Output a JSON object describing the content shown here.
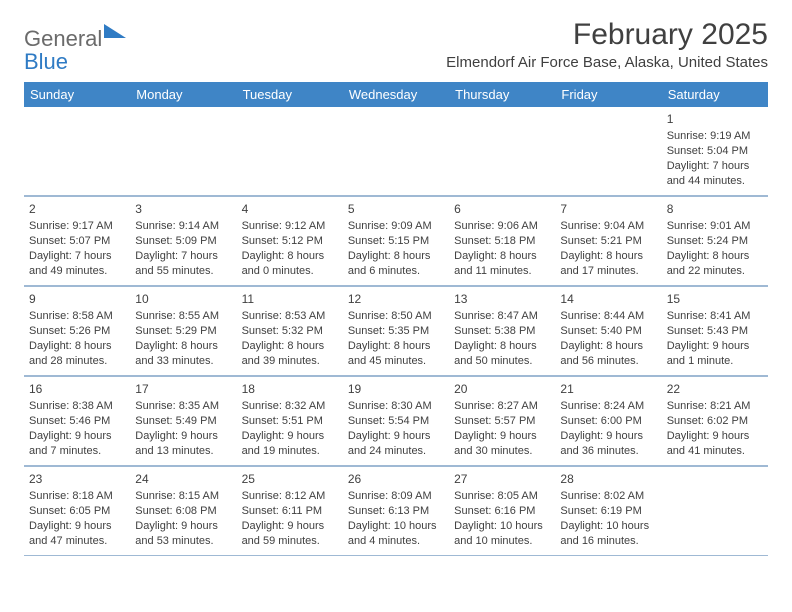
{
  "logo": {
    "text1": "General",
    "text2": "Blue"
  },
  "title": "February 2025",
  "location": "Elmendorf Air Force Base, Alaska, United States",
  "colors": {
    "header_bg": "#3f85c6",
    "header_text": "#ffffff",
    "border": "#9fb9d4",
    "body_text": "#404040",
    "logo_gray": "#6b6b6b",
    "logo_blue": "#2f7bc4",
    "background": "#ffffff"
  },
  "typography": {
    "title_fontsize": 30,
    "location_fontsize": 15,
    "header_fontsize": 13,
    "cell_fontsize": 11,
    "daynum_fontsize": 12
  },
  "day_names": [
    "Sunday",
    "Monday",
    "Tuesday",
    "Wednesday",
    "Thursday",
    "Friday",
    "Saturday"
  ],
  "weeks": [
    [
      null,
      null,
      null,
      null,
      null,
      null,
      {
        "n": "1",
        "sunrise": "Sunrise: 9:19 AM",
        "sunset": "Sunset: 5:04 PM",
        "day1": "Daylight: 7 hours",
        "day2": "and 44 minutes."
      }
    ],
    [
      {
        "n": "2",
        "sunrise": "Sunrise: 9:17 AM",
        "sunset": "Sunset: 5:07 PM",
        "day1": "Daylight: 7 hours",
        "day2": "and 49 minutes."
      },
      {
        "n": "3",
        "sunrise": "Sunrise: 9:14 AM",
        "sunset": "Sunset: 5:09 PM",
        "day1": "Daylight: 7 hours",
        "day2": "and 55 minutes."
      },
      {
        "n": "4",
        "sunrise": "Sunrise: 9:12 AM",
        "sunset": "Sunset: 5:12 PM",
        "day1": "Daylight: 8 hours",
        "day2": "and 0 minutes."
      },
      {
        "n": "5",
        "sunrise": "Sunrise: 9:09 AM",
        "sunset": "Sunset: 5:15 PM",
        "day1": "Daylight: 8 hours",
        "day2": "and 6 minutes."
      },
      {
        "n": "6",
        "sunrise": "Sunrise: 9:06 AM",
        "sunset": "Sunset: 5:18 PM",
        "day1": "Daylight: 8 hours",
        "day2": "and 11 minutes."
      },
      {
        "n": "7",
        "sunrise": "Sunrise: 9:04 AM",
        "sunset": "Sunset: 5:21 PM",
        "day1": "Daylight: 8 hours",
        "day2": "and 17 minutes."
      },
      {
        "n": "8",
        "sunrise": "Sunrise: 9:01 AM",
        "sunset": "Sunset: 5:24 PM",
        "day1": "Daylight: 8 hours",
        "day2": "and 22 minutes."
      }
    ],
    [
      {
        "n": "9",
        "sunrise": "Sunrise: 8:58 AM",
        "sunset": "Sunset: 5:26 PM",
        "day1": "Daylight: 8 hours",
        "day2": "and 28 minutes."
      },
      {
        "n": "10",
        "sunrise": "Sunrise: 8:55 AM",
        "sunset": "Sunset: 5:29 PM",
        "day1": "Daylight: 8 hours",
        "day2": "and 33 minutes."
      },
      {
        "n": "11",
        "sunrise": "Sunrise: 8:53 AM",
        "sunset": "Sunset: 5:32 PM",
        "day1": "Daylight: 8 hours",
        "day2": "and 39 minutes."
      },
      {
        "n": "12",
        "sunrise": "Sunrise: 8:50 AM",
        "sunset": "Sunset: 5:35 PM",
        "day1": "Daylight: 8 hours",
        "day2": "and 45 minutes."
      },
      {
        "n": "13",
        "sunrise": "Sunrise: 8:47 AM",
        "sunset": "Sunset: 5:38 PM",
        "day1": "Daylight: 8 hours",
        "day2": "and 50 minutes."
      },
      {
        "n": "14",
        "sunrise": "Sunrise: 8:44 AM",
        "sunset": "Sunset: 5:40 PM",
        "day1": "Daylight: 8 hours",
        "day2": "and 56 minutes."
      },
      {
        "n": "15",
        "sunrise": "Sunrise: 8:41 AM",
        "sunset": "Sunset: 5:43 PM",
        "day1": "Daylight: 9 hours",
        "day2": "and 1 minute."
      }
    ],
    [
      {
        "n": "16",
        "sunrise": "Sunrise: 8:38 AM",
        "sunset": "Sunset: 5:46 PM",
        "day1": "Daylight: 9 hours",
        "day2": "and 7 minutes."
      },
      {
        "n": "17",
        "sunrise": "Sunrise: 8:35 AM",
        "sunset": "Sunset: 5:49 PM",
        "day1": "Daylight: 9 hours",
        "day2": "and 13 minutes."
      },
      {
        "n": "18",
        "sunrise": "Sunrise: 8:32 AM",
        "sunset": "Sunset: 5:51 PM",
        "day1": "Daylight: 9 hours",
        "day2": "and 19 minutes."
      },
      {
        "n": "19",
        "sunrise": "Sunrise: 8:30 AM",
        "sunset": "Sunset: 5:54 PM",
        "day1": "Daylight: 9 hours",
        "day2": "and 24 minutes."
      },
      {
        "n": "20",
        "sunrise": "Sunrise: 8:27 AM",
        "sunset": "Sunset: 5:57 PM",
        "day1": "Daylight: 9 hours",
        "day2": "and 30 minutes."
      },
      {
        "n": "21",
        "sunrise": "Sunrise: 8:24 AM",
        "sunset": "Sunset: 6:00 PM",
        "day1": "Daylight: 9 hours",
        "day2": "and 36 minutes."
      },
      {
        "n": "22",
        "sunrise": "Sunrise: 8:21 AM",
        "sunset": "Sunset: 6:02 PM",
        "day1": "Daylight: 9 hours",
        "day2": "and 41 minutes."
      }
    ],
    [
      {
        "n": "23",
        "sunrise": "Sunrise: 8:18 AM",
        "sunset": "Sunset: 6:05 PM",
        "day1": "Daylight: 9 hours",
        "day2": "and 47 minutes."
      },
      {
        "n": "24",
        "sunrise": "Sunrise: 8:15 AM",
        "sunset": "Sunset: 6:08 PM",
        "day1": "Daylight: 9 hours",
        "day2": "and 53 minutes."
      },
      {
        "n": "25",
        "sunrise": "Sunrise: 8:12 AM",
        "sunset": "Sunset: 6:11 PM",
        "day1": "Daylight: 9 hours",
        "day2": "and 59 minutes."
      },
      {
        "n": "26",
        "sunrise": "Sunrise: 8:09 AM",
        "sunset": "Sunset: 6:13 PM",
        "day1": "Daylight: 10 hours",
        "day2": "and 4 minutes."
      },
      {
        "n": "27",
        "sunrise": "Sunrise: 8:05 AM",
        "sunset": "Sunset: 6:16 PM",
        "day1": "Daylight: 10 hours",
        "day2": "and 10 minutes."
      },
      {
        "n": "28",
        "sunrise": "Sunrise: 8:02 AM",
        "sunset": "Sunset: 6:19 PM",
        "day1": "Daylight: 10 hours",
        "day2": "and 16 minutes."
      },
      null
    ]
  ]
}
